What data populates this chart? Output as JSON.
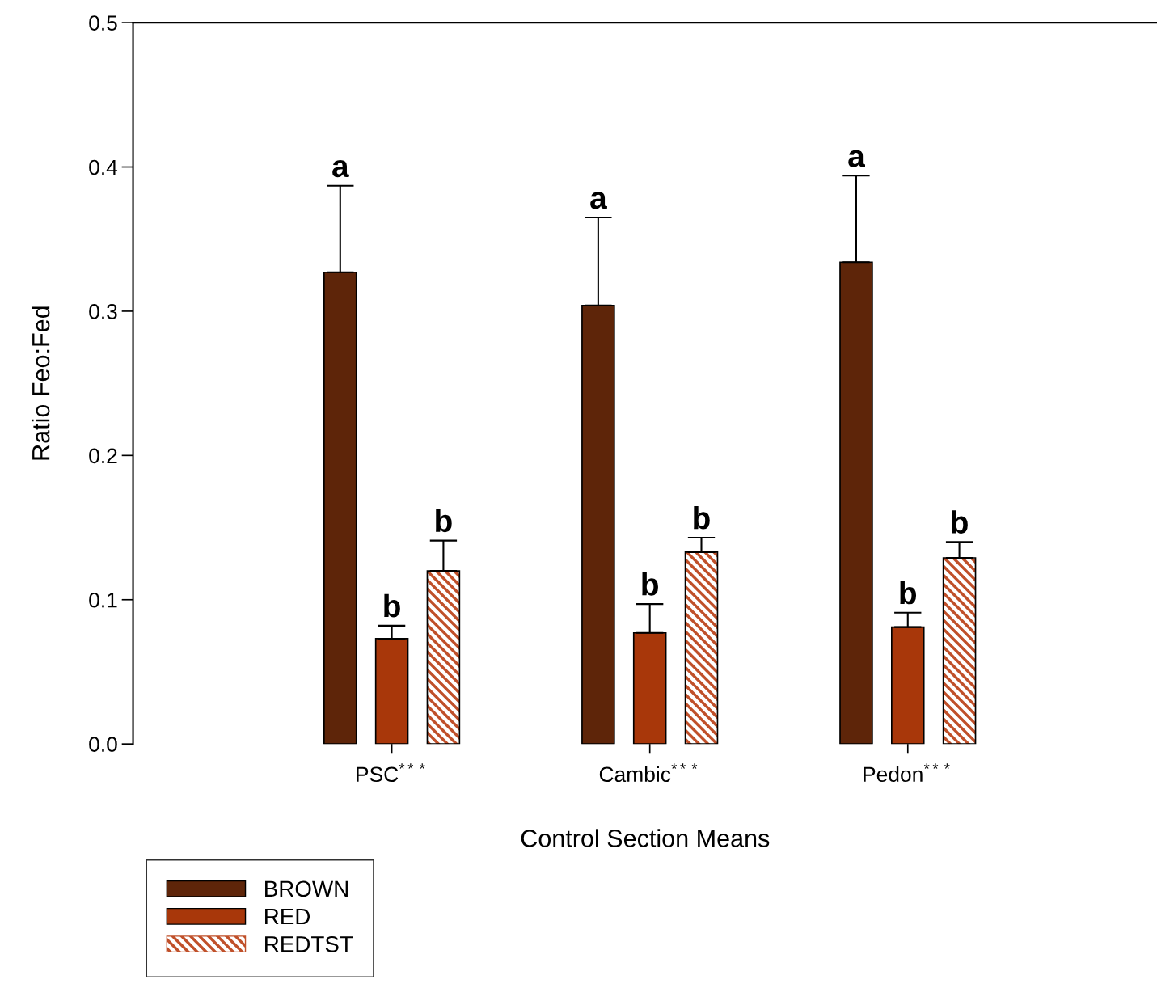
{
  "chart_data": {
    "type": "bar",
    "xlabel": "Control Section Means",
    "ylabel": "Ratio Feo:Fed",
    "categories": [
      "PSC$^{***}$",
      "Cambic$^{***}$",
      "Pedon$^{***}$"
    ],
    "series": [
      {
        "name": "BROWN",
        "color": "#5e2509",
        "values": [
          0.327,
          0.304,
          0.334
        ],
        "errors": [
          [
            0.327,
            0.387
          ],
          [
            0.304,
            0.365
          ],
          [
            0.334,
            0.394
          ]
        ],
        "value_labels": [
          "a",
          "a",
          "a"
        ]
      },
      {
        "name": "RED",
        "color": "#a8370a",
        "values": [
          0.073,
          0.077,
          0.081
        ],
        "errors": [
          [
            0.073,
            0.082
          ],
          [
            0.077,
            0.097
          ],
          [
            0.081,
            0.091
          ]
        ],
        "value_labels": [
          "b",
          "b",
          "b"
        ]
      },
      {
        "name": "REDTST",
        "color": "#c0502a",
        "values": [
          0.12,
          0.133,
          0.129
        ],
        "errors": [
          [
            0.12,
            0.141
          ],
          [
            0.133,
            0.143
          ],
          [
            0.129,
            0.14
          ]
        ],
        "value_labels": [
          "b",
          "b",
          "b"
        ]
      }
    ],
    "ylim": [
      0,
      0.5
    ],
    "yticks": [
      {
        "value": 0,
        "label": "0.0"
      },
      0.1,
      0.2,
      0.3,
      0.4,
      0.5
    ],
    "grid": false,
    "legend": "bottom left"
  }
}
